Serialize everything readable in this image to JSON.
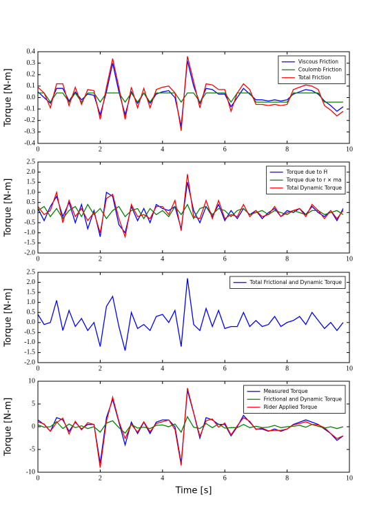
{
  "chart_data": [
    {
      "type": "line",
      "ylabel": "Torque [N-m]",
      "legend": "upper right",
      "x": [
        0,
        0.2,
        0.4,
        0.6,
        0.8,
        1.0,
        1.2,
        1.4,
        1.6,
        1.8,
        2.0,
        2.2,
        2.4,
        2.6,
        2.8,
        3.0,
        3.2,
        3.4,
        3.6,
        3.8,
        4.0,
        4.2,
        4.4,
        4.6,
        4.8,
        5.0,
        5.2,
        5.4,
        5.6,
        5.8,
        6.0,
        6.2,
        6.4,
        6.6,
        6.8,
        7.0,
        7.2,
        7.4,
        7.6,
        7.8,
        8.0,
        8.2,
        8.4,
        8.6,
        8.8,
        9.0,
        9.2,
        9.4,
        9.6,
        9.8
      ],
      "xlim": [
        0,
        10
      ],
      "xticks": [
        0,
        2,
        4,
        6,
        8,
        10
      ],
      "ylim": [
        -0.4,
        0.4
      ],
      "yticks": [
        -0.4,
        -0.3,
        -0.2,
        -0.1,
        {
          "value": 0,
          "label": "0.0"
        },
        0.1,
        0.2,
        0.3,
        0.4
      ],
      "series": [
        {
          "name": "Viscous Friction",
          "color": "#0000ff",
          "values": [
            0.05,
            0.0,
            -0.05,
            0.08,
            0.08,
            -0.03,
            0.05,
            -0.02,
            0.03,
            0.02,
            -0.15,
            0.05,
            0.3,
            0.05,
            -0.15,
            0.05,
            -0.05,
            0.04,
            -0.05,
            0.03,
            0.05,
            0.06,
            0.0,
            -0.25,
            0.32,
            0.1,
            -0.05,
            0.08,
            0.07,
            0.03,
            0.03,
            -0.08,
            0.0,
            0.08,
            0.03,
            -0.02,
            -0.02,
            -0.03,
            -0.02,
            -0.03,
            -0.02,
            0.03,
            0.05,
            0.07,
            0.06,
            0.03,
            -0.03,
            -0.07,
            -0.12,
            -0.08
          ]
        },
        {
          "name": "Coulomb Friction",
          "color": "#008000",
          "values": [
            0.04,
            0.04,
            -0.04,
            0.04,
            0.04,
            -0.04,
            0.04,
            -0.04,
            0.04,
            0.04,
            -0.04,
            0.04,
            0.04,
            0.04,
            -0.04,
            0.04,
            -0.04,
            0.04,
            -0.04,
            0.04,
            0.04,
            0.04,
            0.04,
            -0.04,
            0.04,
            0.04,
            -0.04,
            0.04,
            0.04,
            0.04,
            0.04,
            -0.04,
            0.04,
            0.04,
            0.04,
            -0.04,
            -0.04,
            -0.04,
            -0.04,
            -0.04,
            -0.04,
            0.04,
            0.04,
            0.04,
            0.04,
            0.04,
            -0.04,
            -0.04,
            -0.04,
            -0.04
          ]
        },
        {
          "name": "Total Friction",
          "color": "#ff0000",
          "values": [
            0.09,
            0.04,
            -0.09,
            0.12,
            0.12,
            -0.07,
            0.09,
            -0.06,
            0.07,
            0.06,
            -0.19,
            0.09,
            0.34,
            0.09,
            -0.19,
            0.09,
            -0.09,
            0.08,
            -0.09,
            0.07,
            0.09,
            0.1,
            0.04,
            -0.29,
            0.36,
            0.14,
            -0.09,
            0.12,
            0.11,
            0.07,
            0.07,
            -0.12,
            0.04,
            0.12,
            0.07,
            -0.06,
            -0.06,
            -0.07,
            -0.06,
            -0.07,
            -0.06,
            0.07,
            0.09,
            0.11,
            0.1,
            0.07,
            -0.07,
            -0.11,
            -0.16,
            -0.12
          ]
        }
      ]
    },
    {
      "type": "line",
      "ylabel": "Torque [N-m]",
      "legend": "upper right",
      "x": [
        0,
        0.2,
        0.4,
        0.6,
        0.8,
        1.0,
        1.2,
        1.4,
        1.6,
        1.8,
        2.0,
        2.2,
        2.4,
        2.6,
        2.8,
        3.0,
        3.2,
        3.4,
        3.6,
        3.8,
        4.0,
        4.2,
        4.4,
        4.6,
        4.8,
        5.0,
        5.2,
        5.4,
        5.6,
        5.8,
        6.0,
        6.2,
        6.4,
        6.6,
        6.8,
        7.0,
        7.2,
        7.4,
        7.6,
        7.8,
        8.0,
        8.2,
        8.4,
        8.6,
        8.8,
        9.0,
        9.2,
        9.4,
        9.6,
        9.8
      ],
      "xlim": [
        0,
        10
      ],
      "xticks": [
        0,
        2,
        4,
        6,
        8,
        10
      ],
      "ylim": [
        -2.0,
        2.5
      ],
      "yticks": [
        {
          "value": -2,
          "label": "-2.0"
        },
        -1.5,
        {
          "value": -1,
          "label": "-1.0"
        },
        -0.5,
        {
          "value": 0,
          "label": "0.0"
        },
        0.5,
        {
          "value": 1,
          "label": "1.0"
        },
        1.5,
        {
          "value": 2,
          "label": "2.0"
        },
        2.5
      ],
      "series": [
        {
          "name": "Torque due to Ḣ",
          "color": "#0000ff",
          "values": [
            0.2,
            -0.4,
            0.3,
            0.8,
            -0.2,
            0.5,
            -0.5,
            0.4,
            -0.8,
            0.1,
            -1.2,
            1.0,
            0.8,
            -0.6,
            -1.0,
            0.3,
            -0.4,
            0.2,
            -0.5,
            0.4,
            0.2,
            0.1,
            0.3,
            -0.8,
            1.5,
            0.1,
            -0.5,
            0.3,
            -0.2,
            0.4,
            -0.4,
            0.1,
            -0.3,
            0.2,
            -0.1,
            0.1,
            -0.3,
            0.0,
            0.2,
            -0.2,
            0.1,
            0.0,
            0.2,
            -0.1,
            0.3,
            0.0,
            -0.2,
            0.1,
            -0.4,
            0.2
          ]
        },
        {
          "name": "Torque due to r × ma",
          "color": "#008000",
          "values": [
            0.1,
            0.3,
            -0.2,
            0.2,
            -0.3,
            0.1,
            0.3,
            -0.2,
            0.4,
            -0.1,
            0.2,
            -0.3,
            0.1,
            0.3,
            -0.2,
            0.1,
            0.2,
            -0.3,
            0.2,
            -0.1,
            0.1,
            -0.2,
            0.3,
            -0.1,
            0.4,
            -0.3,
            0.2,
            0.3,
            -0.1,
            0.2,
            0.1,
            -0.2,
            0.1,
            0.2,
            -0.1,
            0.0,
            0.1,
            -0.1,
            0.1,
            0.0,
            -0.1,
            0.1,
            0.0,
            -0.1,
            0.1,
            0.1,
            -0.1,
            0.0,
            0.1,
            -0.1
          ]
        },
        {
          "name": "Total Dynamic Torque",
          "color": "#ff0000",
          "values": [
            0.3,
            -0.1,
            0.1,
            1.0,
            -0.5,
            0.6,
            -0.2,
            0.2,
            -0.4,
            0.0,
            -1.0,
            0.7,
            0.9,
            -0.3,
            -1.2,
            0.4,
            -0.2,
            -0.1,
            -0.3,
            0.3,
            0.3,
            -0.1,
            0.6,
            -0.9,
            1.9,
            -0.2,
            -0.3,
            0.6,
            -0.3,
            0.6,
            -0.3,
            -0.1,
            -0.2,
            0.4,
            -0.2,
            0.1,
            -0.2,
            -0.1,
            0.3,
            -0.2,
            0.0,
            0.1,
            0.2,
            -0.2,
            0.4,
            0.1,
            -0.3,
            0.1,
            -0.3,
            0.1
          ]
        }
      ]
    },
    {
      "type": "line",
      "ylabel": "Torque [N-m]",
      "legend": "upper right",
      "x": [
        0,
        0.2,
        0.4,
        0.6,
        0.8,
        1.0,
        1.2,
        1.4,
        1.6,
        1.8,
        2.0,
        2.2,
        2.4,
        2.6,
        2.8,
        3.0,
        3.2,
        3.4,
        3.6,
        3.8,
        4.0,
        4.2,
        4.4,
        4.6,
        4.8,
        5.0,
        5.2,
        5.4,
        5.6,
        5.8,
        6.0,
        6.2,
        6.4,
        6.6,
        6.8,
        7.0,
        7.2,
        7.4,
        7.6,
        7.8,
        8.0,
        8.2,
        8.4,
        8.6,
        8.8,
        9.0,
        9.2,
        9.4,
        9.6,
        9.8
      ],
      "xlim": [
        0,
        10
      ],
      "xticks": [
        0,
        2,
        4,
        6,
        8,
        10
      ],
      "ylim": [
        -2.0,
        2.5
      ],
      "yticks": [
        {
          "value": -2,
          "label": "-2.0"
        },
        -1.5,
        {
          "value": -1,
          "label": "-1.0"
        },
        -0.5,
        {
          "value": 0,
          "label": "0.0"
        },
        0.5,
        {
          "value": 1,
          "label": "1.0"
        },
        1.5,
        {
          "value": 2,
          "label": "2.0"
        },
        2.5
      ],
      "series": [
        {
          "name": "Total Frictional and Dynamic Torque",
          "color": "#0000ff",
          "values": [
            0.4,
            -0.1,
            0.0,
            1.1,
            -0.4,
            0.6,
            -0.2,
            0.2,
            -0.4,
            0.0,
            -1.2,
            0.8,
            1.3,
            -0.2,
            -1.4,
            0.5,
            -0.3,
            -0.1,
            -0.4,
            0.3,
            0.4,
            0.0,
            0.6,
            -1.2,
            2.2,
            -0.1,
            -0.4,
            0.7,
            -0.2,
            0.6,
            -0.3,
            -0.2,
            -0.2,
            0.5,
            -0.2,
            0.1,
            -0.2,
            -0.1,
            0.3,
            -0.2,
            0.0,
            0.1,
            0.3,
            -0.1,
            0.5,
            0.1,
            -0.3,
            0.0,
            -0.4,
            0.0
          ]
        }
      ]
    },
    {
      "type": "line",
      "ylabel": "Torque [N-m]",
      "xlabel": "Time [s]",
      "legend": "upper right",
      "x": [
        0,
        0.2,
        0.4,
        0.6,
        0.8,
        1.0,
        1.2,
        1.4,
        1.6,
        1.8,
        2.0,
        2.2,
        2.4,
        2.6,
        2.8,
        3.0,
        3.2,
        3.4,
        3.6,
        3.8,
        4.0,
        4.2,
        4.4,
        4.6,
        4.8,
        5.0,
        5.2,
        5.4,
        5.6,
        5.8,
        6.0,
        6.2,
        6.4,
        6.6,
        6.8,
        7.0,
        7.2,
        7.4,
        7.6,
        7.8,
        8.0,
        8.2,
        8.4,
        8.6,
        8.8,
        9.0,
        9.2,
        9.4,
        9.6,
        9.8
      ],
      "xlim": [
        0,
        10
      ],
      "xticks": [
        0,
        2,
        4,
        6,
        8,
        10
      ],
      "ylim": [
        -10,
        10
      ],
      "yticks": [
        -10,
        -5,
        0,
        5,
        10
      ],
      "series": [
        {
          "name": "Measured Torque",
          "color": "#0000ff",
          "values": [
            1.5,
            0.5,
            -1.0,
            2.0,
            1.5,
            -1.0,
            1.0,
            -0.5,
            0.5,
            0.5,
            -8.0,
            2.0,
            6.0,
            1.0,
            -4.0,
            1.0,
            -1.5,
            1.0,
            -1.5,
            1.0,
            1.5,
            1.5,
            0.0,
            -8.0,
            8.0,
            3.0,
            -2.5,
            2.0,
            1.5,
            0.5,
            0.5,
            -2.0,
            0.0,
            2.5,
            1.0,
            -0.5,
            -0.5,
            -1.0,
            -0.5,
            -1.0,
            -0.5,
            0.5,
            1.0,
            1.5,
            1.0,
            0.5,
            -0.5,
            -1.5,
            -3.0,
            -2.0
          ]
        },
        {
          "name": "Frictional and Dynamic Torque",
          "color": "#008000",
          "values": [
            0.4,
            -0.1,
            0.0,
            1.1,
            -0.4,
            0.6,
            -0.2,
            0.2,
            -0.4,
            0.0,
            -1.2,
            0.8,
            1.3,
            -0.2,
            -1.4,
            0.5,
            -0.3,
            -0.1,
            -0.4,
            0.3,
            0.4,
            0.0,
            0.6,
            -1.2,
            2.2,
            -0.1,
            -0.4,
            0.7,
            -0.2,
            0.6,
            -0.3,
            -0.2,
            -0.2,
            0.5,
            -0.2,
            0.1,
            -0.2,
            -0.1,
            0.3,
            -0.2,
            0.0,
            0.1,
            0.3,
            -0.1,
            0.5,
            0.1,
            -0.3,
            0.0,
            -0.4,
            0.0
          ]
        },
        {
          "name": "Rider Applied Torque",
          "color": "#ff0000",
          "values": [
            1.1,
            0.6,
            -1.0,
            0.9,
            1.9,
            -1.6,
            1.2,
            -0.7,
            0.9,
            0.5,
            -9.0,
            1.2,
            6.5,
            1.2,
            -2.6,
            0.5,
            -1.2,
            1.1,
            -1.1,
            0.7,
            1.1,
            1.5,
            -0.6,
            -8.5,
            8.5,
            3.1,
            -2.1,
            1.3,
            1.7,
            -0.1,
            0.8,
            -1.8,
            0.2,
            2.0,
            1.2,
            -0.6,
            -0.3,
            -0.9,
            -0.8,
            -0.8,
            -0.5,
            0.4,
            0.7,
            1.1,
            0.5,
            0.4,
            -0.2,
            -1.5,
            -2.6,
            -2.0
          ]
        }
      ]
    }
  ]
}
